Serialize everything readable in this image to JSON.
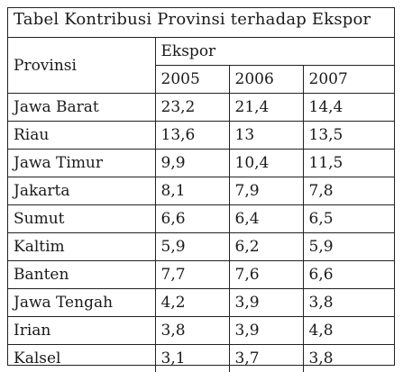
{
  "title": "Tabel Kontribusi Provinsi terhadap Ekspor",
  "header": {
    "province_label": "Provinsi",
    "group_label": "Ekspor",
    "years": [
      "2005",
      "2006",
      "2007"
    ]
  },
  "rows": [
    {
      "province": "Jawa Barat",
      "values": [
        "23,2",
        "21,4",
        "14,4"
      ]
    },
    {
      "province": "Riau",
      "values": [
        "13,6",
        "13",
        "13,5"
      ]
    },
    {
      "province": "Jawa Timur",
      "values": [
        "9,9",
        "10,4",
        "11,5"
      ]
    },
    {
      "province": "Jakarta",
      "values": [
        "8,1",
        "7,9",
        "7,8"
      ]
    },
    {
      "province": "Sumut",
      "values": [
        "6,6",
        "6,4",
        "6,5"
      ]
    },
    {
      "province": "Kaltim",
      "values": [
        "5,9",
        "6,2",
        "5,9"
      ]
    },
    {
      "province": "Banten",
      "values": [
        "7,7",
        "7,6",
        "6,6"
      ]
    },
    {
      "province": "Jawa Tengah",
      "values": [
        "4,2",
        "3,9",
        "3,8"
      ]
    },
    {
      "province": "Irian",
      "values": [
        "3,8",
        "3,9",
        "4,8"
      ]
    },
    {
      "province": "Kalsel",
      "values": [
        "3,1",
        "3,7",
        "3,8"
      ]
    }
  ]
}
